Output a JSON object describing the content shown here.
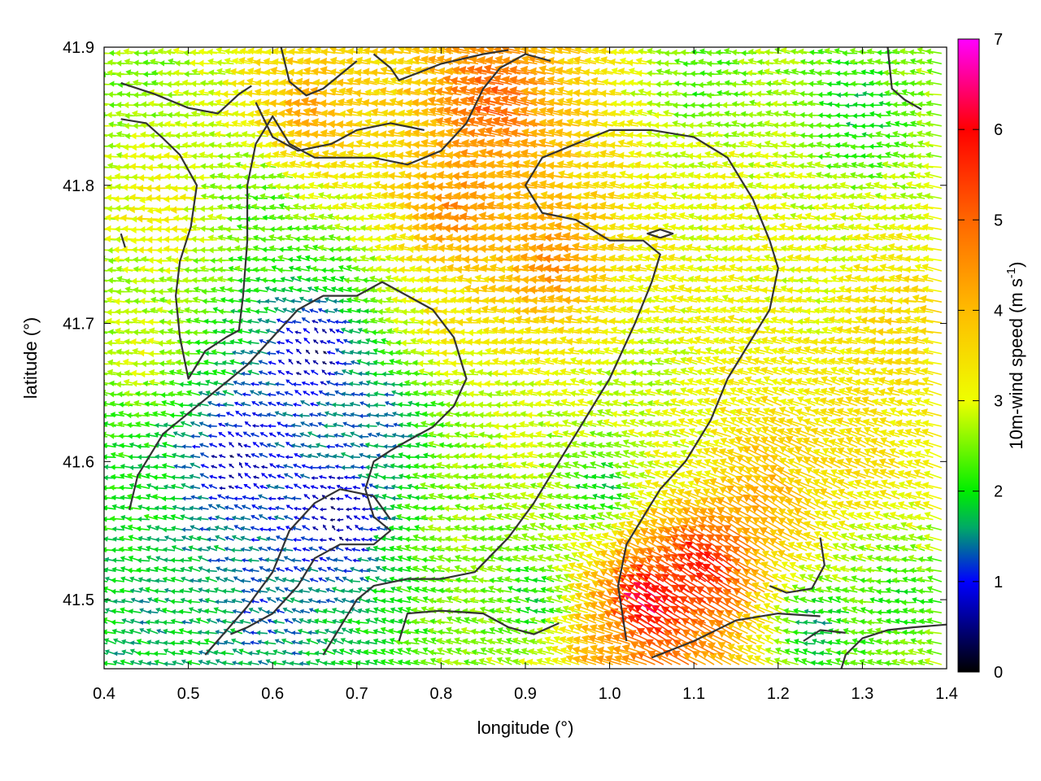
{
  "chart_data": {
    "type": "vector-field",
    "xlabel": "longitude (°)",
    "ylabel": "latitude (°)",
    "xlim": [
      0.4,
      1.4
    ],
    "ylim": [
      41.45,
      41.9
    ],
    "xticks": [
      {
        "value": 0.4,
        "label": "0.4"
      },
      {
        "value": 0.5,
        "label": "0.5"
      },
      {
        "value": 0.6,
        "label": "0.6"
      },
      {
        "value": 0.7,
        "label": "0.7"
      },
      {
        "value": 0.8,
        "label": "0.8"
      },
      {
        "value": 0.9,
        "label": "0.9"
      },
      {
        "value": 1.0,
        "label": "1.0"
      },
      {
        "value": 1.1,
        "label": "1.1"
      },
      {
        "value": 1.2,
        "label": "1.2"
      },
      {
        "value": 1.3,
        "label": "1.3"
      },
      {
        "value": 1.4,
        "label": "1.4"
      }
    ],
    "yticks": [
      {
        "value": 41.5,
        "label": "41.5"
      },
      {
        "value": 41.6,
        "label": "41.6"
      },
      {
        "value": 41.7,
        "label": "41.7"
      },
      {
        "value": 41.8,
        "label": "41.8"
      },
      {
        "value": 41.9,
        "label": "41.9"
      }
    ],
    "colorbar": {
      "label_main": "10m-wind speed (m s",
      "label_sup": "-1",
      "label_close": ")",
      "range": [
        0,
        7
      ],
      "ticks": [
        {
          "value": 0,
          "label": "0"
        },
        {
          "value": 1,
          "label": "1"
        },
        {
          "value": 2,
          "label": "2"
        },
        {
          "value": 3,
          "label": "3"
        },
        {
          "value": 4,
          "label": "4"
        },
        {
          "value": 5,
          "label": "5"
        },
        {
          "value": 6,
          "label": "6"
        },
        {
          "value": 7,
          "label": "7"
        }
      ],
      "stops": [
        {
          "value": 0,
          "color": "#000000"
        },
        {
          "value": 1,
          "color": "#0000ff"
        },
        {
          "value": 1.6,
          "color": "#00aa66"
        },
        {
          "value": 2,
          "color": "#00ee00"
        },
        {
          "value": 3,
          "color": "#eeff00"
        },
        {
          "value": 4,
          "color": "#ffbb00"
        },
        {
          "value": 5,
          "color": "#ff6600"
        },
        {
          "value": 6,
          "color": "#ff0000"
        },
        {
          "value": 7,
          "color": "#ff00ff"
        }
      ]
    },
    "wind_centers": [
      {
        "lon": 0.45,
        "lat": 41.88,
        "u": -2.5,
        "v": 0.2,
        "w": 1.0
      },
      {
        "lon": 0.48,
        "lat": 41.78,
        "u": -3.4,
        "v": -0.2,
        "w": 1.0
      },
      {
        "lon": 0.46,
        "lat": 41.68,
        "u": -3.0,
        "v": 0.3,
        "w": 1.0
      },
      {
        "lon": 0.45,
        "lat": 41.57,
        "u": -2.0,
        "v": 0.3,
        "w": 1.0
      },
      {
        "lon": 0.47,
        "lat": 41.49,
        "u": -1.6,
        "v": 0.4,
        "w": 1.0
      },
      {
        "lon": 0.56,
        "lat": 41.6,
        "u": -0.4,
        "v": 0.3,
        "w": 1.3
      },
      {
        "lon": 0.65,
        "lat": 41.68,
        "u": -0.2,
        "v": 0.4,
        "w": 1.3
      },
      {
        "lon": 0.68,
        "lat": 41.56,
        "u": -0.3,
        "v": 0.2,
        "w": 1.3
      },
      {
        "lon": 0.6,
        "lat": 41.5,
        "u": -1.2,
        "v": 0.4,
        "w": 1.0
      },
      {
        "lon": 0.74,
        "lat": 41.63,
        "u": -1.2,
        "v": 0.2,
        "w": 1.0
      },
      {
        "lon": 0.66,
        "lat": 41.85,
        "u": -4.2,
        "v": 0.7,
        "w": 1.2
      },
      {
        "lon": 0.6,
        "lat": 41.78,
        "u": -2.2,
        "v": 0.3,
        "w": 1.0
      },
      {
        "lon": 0.84,
        "lat": 41.78,
        "u": -4.6,
        "v": 0.4,
        "w": 1.3
      },
      {
        "lon": 0.88,
        "lat": 41.86,
        "u": -5.0,
        "v": 1.2,
        "w": 1.2
      },
      {
        "lon": 0.82,
        "lat": 41.7,
        "u": -3.4,
        "v": 0.2,
        "w": 1.0
      },
      {
        "lon": 0.95,
        "lat": 41.74,
        "u": -4.6,
        "v": 0.6,
        "w": 1.2
      },
      {
        "lon": 0.88,
        "lat": 41.62,
        "u": -2.8,
        "v": 0.1,
        "w": 1.0
      },
      {
        "lon": 0.83,
        "lat": 41.55,
        "u": -2.6,
        "v": 0.4,
        "w": 1.0
      },
      {
        "lon": 1.05,
        "lat": 41.66,
        "u": -2.6,
        "v": 0.3,
        "w": 1.0
      },
      {
        "lon": 1.15,
        "lat": 41.78,
        "u": -3.0,
        "v": 0.4,
        "w": 1.0
      },
      {
        "lon": 1.12,
        "lat": 41.87,
        "u": -2.2,
        "v": 0.1,
        "w": 1.0
      },
      {
        "lon": 1.3,
        "lat": 41.85,
        "u": -1.8,
        "v": 0.1,
        "w": 1.0
      },
      {
        "lon": 1.25,
        "lat": 41.72,
        "u": -3.0,
        "v": 0.3,
        "w": 1.0
      },
      {
        "lon": 1.35,
        "lat": 41.7,
        "u": -3.6,
        "v": 0.5,
        "w": 1.0
      },
      {
        "lon": 1.3,
        "lat": 41.6,
        "u": -3.2,
        "v": 1.4,
        "w": 1.0
      },
      {
        "lon": 1.2,
        "lat": 41.57,
        "u": -3.5,
        "v": 2.4,
        "w": 1.0
      },
      {
        "lon": 1.13,
        "lat": 41.52,
        "u": -5.0,
        "v": 3.5,
        "w": 1.3
      },
      {
        "lon": 1.06,
        "lat": 41.49,
        "u": -5.5,
        "v": 3.8,
        "w": 1.2
      },
      {
        "lon": 1.1,
        "lat": 41.6,
        "u": -2.8,
        "v": 0.8,
        "w": 1.0
      },
      {
        "lon": 1.0,
        "lat": 41.58,
        "u": -1.5,
        "v": 0.3,
        "w": 1.0
      },
      {
        "lon": 1.25,
        "lat": 41.48,
        "u": -1.5,
        "v": 0.1,
        "w": 1.0
      },
      {
        "lon": 1.35,
        "lat": 41.5,
        "u": -2.0,
        "v": 0.1,
        "w": 1.0
      },
      {
        "lon": 0.92,
        "lat": 41.5,
        "u": -1.8,
        "v": 0.4,
        "w": 1.0
      },
      {
        "lon": 1.02,
        "lat": 41.46,
        "u": -4.0,
        "v": 0.8,
        "w": 1.0
      }
    ],
    "contours": [
      [
        [
          0.42,
          41.874
        ],
        [
          0.46,
          41.866
        ],
        [
          0.5,
          41.856
        ],
        [
          0.535,
          41.852
        ],
        [
          0.56,
          41.866
        ],
        [
          0.575,
          41.872
        ]
      ],
      [
        [
          0.42,
          41.848
        ],
        [
          0.45,
          41.845
        ],
        [
          0.47,
          41.834
        ],
        [
          0.49,
          41.822
        ],
        [
          0.51,
          41.8
        ],
        [
          0.503,
          41.77
        ],
        [
          0.49,
          41.745
        ],
        [
          0.485,
          41.72
        ],
        [
          0.49,
          41.69
        ],
        [
          0.5,
          41.66
        ],
        [
          0.52,
          41.68
        ],
        [
          0.545,
          41.69
        ],
        [
          0.56,
          41.695
        ],
        [
          0.565,
          41.72
        ],
        [
          0.57,
          41.76
        ],
        [
          0.57,
          41.8
        ],
        [
          0.58,
          41.83
        ],
        [
          0.6,
          41.85
        ],
        [
          0.62,
          41.83
        ],
        [
          0.65,
          41.82
        ],
        [
          0.68,
          41.82
        ],
        [
          0.72,
          41.82
        ],
        [
          0.76,
          41.815
        ],
        [
          0.8,
          41.825
        ],
        [
          0.83,
          41.845
        ],
        [
          0.85,
          41.87
        ],
        [
          0.87,
          41.885
        ],
        [
          0.9,
          41.895
        ],
        [
          0.93,
          41.89
        ]
      ],
      [
        [
          0.42,
          41.765
        ],
        [
          0.425,
          41.755
        ]
      ],
      [
        [
          0.61,
          41.9
        ],
        [
          0.62,
          41.875
        ],
        [
          0.64,
          41.865
        ],
        [
          0.66,
          41.87
        ],
        [
          0.68,
          41.88
        ],
        [
          0.7,
          41.89
        ]
      ],
      [
        [
          0.72,
          41.895
        ],
        [
          0.74,
          41.885
        ],
        [
          0.75,
          41.876
        ],
        [
          0.8,
          41.888
        ],
        [
          0.85,
          41.895
        ],
        [
          0.88,
          41.898
        ]
      ],
      [
        [
          0.58,
          41.86
        ],
        [
          0.6,
          41.835
        ],
        [
          0.63,
          41.825
        ],
        [
          0.67,
          41.83
        ],
        [
          0.7,
          41.84
        ],
        [
          0.74,
          41.845
        ],
        [
          0.78,
          41.84
        ]
      ],
      [
        [
          0.52,
          41.46
        ],
        [
          0.57,
          41.495
        ],
        [
          0.6,
          41.52
        ],
        [
          0.62,
          41.55
        ],
        [
          0.65,
          41.57
        ],
        [
          0.68,
          41.58
        ],
        [
          0.72,
          41.575
        ],
        [
          0.74,
          41.558
        ]
      ],
      [
        [
          0.43,
          41.565
        ],
        [
          0.44,
          41.59
        ],
        [
          0.47,
          41.62
        ],
        [
          0.51,
          41.64
        ],
        [
          0.54,
          41.655
        ],
        [
          0.57,
          41.67
        ],
        [
          0.6,
          41.69
        ],
        [
          0.63,
          41.71
        ],
        [
          0.66,
          41.72
        ],
        [
          0.7,
          41.72
        ],
        [
          0.73,
          41.73
        ],
        [
          0.76,
          41.72
        ],
        [
          0.79,
          41.71
        ],
        [
          0.815,
          41.69
        ],
        [
          0.83,
          41.66
        ],
        [
          0.815,
          41.64
        ],
        [
          0.79,
          41.625
        ],
        [
          0.76,
          41.615
        ],
        [
          0.74,
          41.608
        ],
        [
          0.72,
          41.6
        ],
        [
          0.71,
          41.58
        ],
        [
          0.72,
          41.56
        ],
        [
          0.74,
          41.55
        ],
        [
          0.72,
          41.54
        ],
        [
          0.68,
          41.54
        ],
        [
          0.65,
          41.53
        ],
        [
          0.63,
          41.51
        ],
        [
          0.6,
          41.49
        ],
        [
          0.57,
          41.48
        ],
        [
          0.55,
          41.475
        ]
      ],
      [
        [
          0.66,
          41.46
        ],
        [
          0.7,
          41.5
        ],
        [
          0.72,
          41.51
        ],
        [
          0.76,
          41.515
        ],
        [
          0.8,
          41.515
        ],
        [
          0.84,
          41.52
        ],
        [
          0.88,
          41.545
        ],
        [
          0.91,
          41.57
        ],
        [
          0.94,
          41.6
        ],
        [
          0.96,
          41.62
        ],
        [
          0.98,
          41.64
        ],
        [
          1.0,
          41.66
        ],
        [
          1.03,
          41.7
        ],
        [
          1.05,
          41.73
        ],
        [
          1.06,
          41.75
        ],
        [
          1.04,
          41.76
        ],
        [
          1.0,
          41.76
        ],
        [
          0.96,
          41.775
        ],
        [
          0.92,
          41.78
        ],
        [
          0.9,
          41.8
        ],
        [
          0.92,
          41.82
        ],
        [
          0.96,
          41.83
        ],
        [
          1.0,
          41.84
        ],
        [
          1.05,
          41.84
        ],
        [
          1.1,
          41.835
        ],
        [
          1.14,
          41.82
        ],
        [
          1.17,
          41.79
        ],
        [
          1.19,
          41.76
        ],
        [
          1.2,
          41.74
        ],
        [
          1.19,
          41.71
        ],
        [
          1.16,
          41.68
        ],
        [
          1.14,
          41.66
        ],
        [
          1.12,
          41.63
        ],
        [
          1.09,
          41.6
        ],
        [
          1.06,
          41.58
        ],
        [
          1.04,
          41.56
        ],
        [
          1.02,
          41.54
        ],
        [
          1.01,
          41.51
        ],
        [
          1.02,
          41.47
        ]
      ],
      [
        [
          0.75,
          41.47
        ],
        [
          0.76,
          41.49
        ],
        [
          0.8,
          41.492
        ],
        [
          0.85,
          41.49
        ],
        [
          0.88,
          41.48
        ],
        [
          0.91,
          41.475
        ],
        [
          0.94,
          41.483
        ]
      ],
      [
        [
          1.06,
          41.762
        ],
        [
          1.075,
          41.765
        ],
        [
          1.06,
          41.768
        ],
        [
          1.045,
          41.765
        ],
        [
          1.06,
          41.762
        ]
      ],
      [
        [
          1.19,
          41.51
        ],
        [
          1.21,
          41.505
        ],
        [
          1.24,
          41.508
        ],
        [
          1.255,
          41.525
        ],
        [
          1.25,
          41.545
        ]
      ],
      [
        [
          1.27,
          41.44
        ],
        [
          1.28,
          41.46
        ],
        [
          1.3,
          41.472
        ],
        [
          1.33,
          41.478
        ],
        [
          1.36,
          41.48
        ],
        [
          1.4,
          41.482
        ]
      ],
      [
        [
          1.23,
          41.47
        ],
        [
          1.25,
          41.478
        ],
        [
          1.28,
          41.476
        ]
      ],
      [
        [
          1.33,
          41.9
        ],
        [
          1.335,
          41.87
        ],
        [
          1.35,
          41.862
        ],
        [
          1.37,
          41.855
        ]
      ],
      [
        [
          1.05,
          41.458
        ],
        [
          1.1,
          41.47
        ],
        [
          1.15,
          41.485
        ],
        [
          1.2,
          41.49
        ],
        [
          1.25,
          41.488
        ]
      ]
    ]
  }
}
